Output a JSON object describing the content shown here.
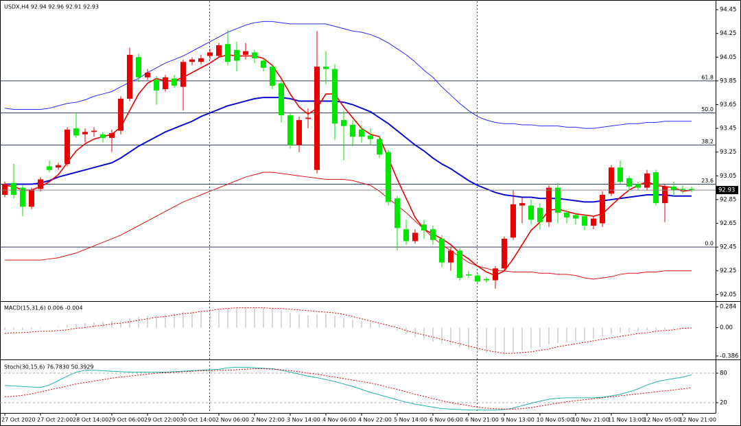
{
  "chart_data": [
    {
      "type": "candlestick",
      "title": "USDX,H4  92.94 92.96 92.91 92.93",
      "up_color": "#e60000",
      "down_color": "#00e600",
      "ylim": [
        92.0,
        94.52
      ],
      "yticks": [
        94.45,
        94.25,
        94.05,
        93.85,
        93.65,
        93.45,
        93.25,
        93.05,
        92.85,
        92.65,
        92.45,
        92.25,
        92.05
      ],
      "current_price": 92.93,
      "fib_levels": [
        {
          "value": 93.85,
          "label": "61.8"
        },
        {
          "value": 93.58,
          "label": "50.0"
        },
        {
          "value": 93.31,
          "label": "38.2"
        },
        {
          "value": 92.98,
          "label": "23.6"
        },
        {
          "value": 92.45,
          "label": "0.0"
        }
      ],
      "open": [
        92.89,
        92.99,
        92.95,
        92.79,
        92.94,
        93.13,
        93.12,
        93.15,
        93.45,
        93.4,
        93.42,
        93.4,
        93.37,
        93.43,
        93.7,
        94.05,
        93.88,
        93.86,
        93.78,
        93.87,
        93.8,
        94.01,
        94.01,
        94.06,
        94.06,
        94.16,
        94.11,
        94.07,
        94.09,
        94.02,
        93.97,
        93.83,
        93.56,
        93.31,
        93.53,
        93.1,
        93.97,
        93.95,
        93.52,
        93.48,
        93.44,
        93.39,
        93.36,
        93.25,
        92.86,
        92.6,
        92.5,
        92.64,
        92.6,
        92.52,
        92.32,
        92.42,
        92.22,
        92.21,
        92.18,
        92.17,
        92.27,
        92.53,
        92.8,
        92.8,
        92.78,
        92.66,
        92.95,
        92.74,
        92.72,
        92.71,
        92.63,
        92.65,
        92.9,
        93.12,
        93.03,
        92.98,
        92.95,
        93.08,
        92.82,
        92.96,
        92.94,
        92.94
      ],
      "high": [
        93.0,
        93.15,
        92.97,
        92.95,
        93.04,
        93.18,
        93.16,
        93.46,
        93.58,
        93.45,
        93.46,
        93.42,
        93.44,
        93.72,
        94.13,
        94.08,
        93.95,
        93.89,
        93.9,
        93.9,
        94.03,
        94.05,
        94.07,
        94.12,
        94.17,
        94.28,
        94.18,
        94.17,
        94.11,
        94.04,
        93.98,
        93.85,
        93.58,
        93.55,
        93.62,
        94.27,
        94.1,
        93.99,
        93.6,
        93.52,
        93.48,
        93.45,
        93.38,
        93.27,
        92.88,
        92.68,
        92.6,
        92.68,
        92.63,
        92.55,
        92.45,
        92.44,
        92.25,
        92.23,
        92.2,
        92.29,
        92.54,
        92.93,
        92.87,
        92.85,
        92.82,
        92.97,
        92.99,
        92.76,
        92.74,
        92.73,
        92.71,
        92.92,
        93.14,
        93.18,
        93.05,
        93.0,
        93.1,
        93.1,
        92.98,
        93.0,
        92.97,
        92.96
      ],
      "low": [
        92.87,
        92.86,
        92.71,
        92.77,
        92.92,
        93.08,
        93.1,
        93.13,
        93.37,
        93.33,
        93.38,
        93.33,
        93.25,
        93.4,
        93.68,
        93.84,
        93.86,
        93.65,
        93.76,
        93.79,
        93.6,
        93.98,
        93.99,
        94.03,
        94.05,
        93.98,
        93.93,
        94.03,
        94.0,
        93.93,
        93.78,
        93.5,
        93.28,
        93.25,
        93.45,
        93.07,
        93.82,
        93.35,
        93.18,
        93.3,
        93.33,
        93.31,
        93.2,
        92.8,
        92.42,
        92.47,
        92.48,
        92.52,
        92.47,
        92.28,
        92.25,
        92.17,
        92.19,
        92.14,
        92.15,
        92.1,
        92.25,
        92.51,
        92.65,
        92.64,
        92.6,
        92.62,
        92.65,
        92.65,
        92.64,
        92.59,
        92.6,
        92.62,
        92.88,
        92.98,
        92.93,
        92.93,
        92.93,
        92.8,
        92.66,
        92.88,
        92.9,
        92.91
      ],
      "close": [
        92.98,
        92.89,
        92.79,
        92.93,
        93.02,
        93.1,
        93.14,
        93.44,
        93.39,
        93.42,
        93.43,
        93.37,
        93.41,
        93.7,
        94.07,
        93.88,
        93.92,
        93.77,
        93.88,
        93.81,
        94.01,
        94.03,
        94.04,
        94.09,
        94.15,
        94.01,
        94.02,
        94.1,
        94.04,
        93.96,
        93.81,
        93.56,
        93.31,
        93.52,
        93.54,
        93.97,
        93.95,
        93.49,
        93.47,
        93.38,
        93.38,
        93.36,
        93.23,
        92.83,
        92.61,
        92.5,
        92.57,
        92.59,
        92.51,
        92.32,
        92.42,
        92.19,
        92.21,
        92.16,
        92.17,
        92.27,
        92.52,
        92.81,
        92.82,
        92.68,
        92.66,
        92.95,
        92.74,
        92.7,
        92.69,
        92.63,
        92.69,
        92.89,
        93.12,
        93.0,
        92.96,
        92.95,
        93.07,
        92.82,
        92.96,
        92.93,
        92.93,
        92.93
      ],
      "series": [
        {
          "style": "line",
          "color": "#2a2aff",
          "width": 1,
          "values": [
            93.62,
            93.61,
            93.61,
            93.61,
            93.61,
            93.62,
            93.64,
            93.66,
            93.67,
            93.69,
            93.72,
            93.74,
            93.76,
            93.8,
            93.84,
            93.87,
            93.92,
            93.96,
            94.0,
            94.03,
            94.06,
            94.1,
            94.14,
            94.18,
            94.22,
            94.26,
            94.29,
            94.32,
            94.34,
            94.35,
            94.35,
            94.34,
            94.33,
            94.33,
            94.33,
            94.33,
            94.33,
            94.31,
            94.29,
            94.27,
            94.26,
            94.24,
            94.21,
            94.17,
            94.12,
            94.07,
            94.01,
            93.94,
            93.88,
            93.8,
            93.73,
            93.66,
            93.6,
            93.55,
            93.52,
            93.5,
            93.49,
            93.49,
            93.48,
            93.48,
            93.47,
            93.47,
            93.47,
            93.46,
            93.46,
            93.45,
            93.45,
            93.46,
            93.47,
            93.48,
            93.49,
            93.49,
            93.5,
            93.5,
            93.51,
            93.51,
            93.51,
            93.51
          ]
        },
        {
          "style": "line",
          "color": "#dd1111",
          "width": 1,
          "values": [
            92.34,
            92.34,
            92.34,
            92.34,
            92.34,
            92.35,
            92.36,
            92.38,
            92.4,
            92.43,
            92.46,
            92.49,
            92.52,
            92.55,
            92.59,
            92.63,
            92.67,
            92.71,
            92.75,
            92.79,
            92.83,
            92.86,
            92.89,
            92.92,
            92.95,
            92.98,
            93.01,
            93.04,
            93.06,
            93.08,
            93.08,
            93.07,
            93.06,
            93.05,
            93.04,
            93.03,
            93.02,
            93.02,
            93.02,
            93.01,
            92.99,
            92.97,
            92.92,
            92.86,
            92.8,
            92.74,
            92.67,
            92.6,
            92.53,
            92.47,
            92.42,
            92.37,
            92.32,
            92.29,
            92.27,
            92.25,
            92.25,
            92.24,
            92.24,
            92.24,
            92.23,
            92.23,
            92.22,
            92.22,
            92.21,
            92.19,
            92.18,
            92.19,
            92.2,
            92.22,
            92.23,
            92.23,
            92.24,
            92.24,
            92.25,
            92.25,
            92.25,
            92.25
          ]
        },
        {
          "style": "line",
          "color": "#0a0ad0",
          "width": 2,
          "values": [
            92.98,
            92.98,
            92.98,
            92.98,
            92.99,
            93.01,
            93.04,
            93.06,
            93.08,
            93.1,
            93.12,
            93.14,
            93.16,
            93.2,
            93.25,
            93.3,
            93.34,
            93.38,
            93.42,
            93.45,
            93.48,
            93.51,
            93.55,
            93.58,
            93.61,
            93.64,
            93.66,
            93.68,
            93.7,
            93.71,
            93.71,
            93.71,
            93.7,
            93.68,
            93.68,
            93.68,
            93.68,
            93.68,
            93.67,
            93.65,
            93.62,
            93.59,
            93.54,
            93.49,
            93.43,
            93.37,
            93.31,
            93.26,
            93.2,
            93.15,
            93.11,
            93.06,
            93.01,
            92.97,
            92.94,
            92.91,
            92.89,
            92.88,
            92.87,
            92.87,
            92.86,
            92.86,
            92.86,
            92.85,
            92.84,
            92.83,
            92.83,
            92.84,
            92.85,
            92.86,
            92.87,
            92.88,
            92.89,
            92.89,
            92.89,
            92.88,
            92.88,
            92.88
          ]
        },
        {
          "style": "line",
          "color": "#e60000",
          "width": 1.6,
          "values": [
            92.97,
            92.96,
            92.93,
            92.93,
            92.96,
            93.0,
            93.06,
            93.16,
            93.26,
            93.32,
            93.36,
            93.38,
            93.4,
            93.46,
            93.6,
            93.74,
            93.83,
            93.87,
            93.85,
            93.85,
            93.88,
            93.92,
            93.96,
            94.0,
            94.05,
            94.07,
            94.06,
            94.06,
            94.06,
            94.04,
            93.98,
            93.87,
            93.74,
            93.63,
            93.57,
            93.62,
            93.74,
            93.74,
            93.63,
            93.54,
            93.45,
            93.4,
            93.38,
            93.2,
            93.02,
            92.86,
            92.7,
            92.6,
            92.56,
            92.52,
            92.47,
            92.4,
            92.35,
            92.29,
            92.24,
            92.21,
            92.25,
            92.35,
            92.47,
            92.59,
            92.66,
            92.76,
            92.77,
            92.75,
            92.73,
            92.72,
            92.71,
            92.73,
            92.8,
            92.87,
            92.93,
            92.97,
            93.0,
            92.97,
            92.96,
            92.95,
            92.92,
            92.93
          ]
        }
      ]
    },
    {
      "type": "bar",
      "title": "MACD(15,31,6) 0.006 -0.004",
      "ylim": [
        -0.424,
        0.341
      ],
      "yticks": [
        0.284,
        {
          "value": 0,
          "label": "0.00"
        },
        -0.386
      ],
      "series": [
        {
          "style": "bar",
          "color": "#b0b0b0",
          "width": 1,
          "values": [
            -0.03,
            -0.03,
            -0.03,
            -0.02,
            -0.01,
            0.0,
            0.01,
            0.03,
            0.05,
            0.06,
            0.07,
            0.08,
            0.09,
            0.1,
            0.13,
            0.15,
            0.16,
            0.17,
            0.18,
            0.19,
            0.21,
            0.22,
            0.23,
            0.25,
            0.26,
            0.27,
            0.27,
            0.28,
            0.28,
            0.27,
            0.26,
            0.23,
            0.2,
            0.18,
            0.17,
            0.18,
            0.19,
            0.16,
            0.13,
            0.11,
            0.09,
            0.07,
            0.05,
            0.01,
            -0.04,
            -0.09,
            -0.13,
            -0.16,
            -0.19,
            -0.22,
            -0.24,
            -0.27,
            -0.3,
            -0.33,
            -0.35,
            -0.37,
            -0.37,
            -0.34,
            -0.31,
            -0.29,
            -0.27,
            -0.23,
            -0.21,
            -0.2,
            -0.18,
            -0.17,
            -0.15,
            -0.12,
            -0.09,
            -0.07,
            -0.06,
            -0.05,
            -0.04,
            -0.04,
            -0.03,
            -0.02,
            -0.01,
            0.006
          ]
        },
        {
          "style": "dotted",
          "color": "#e60000",
          "width": 1,
          "values": [
            -0.08,
            -0.07,
            -0.07,
            -0.06,
            -0.05,
            -0.05,
            -0.04,
            -0.03,
            -0.01,
            0.0,
            0.02,
            0.03,
            0.05,
            0.06,
            0.08,
            0.1,
            0.12,
            0.14,
            0.15,
            0.17,
            0.19,
            0.2,
            0.22,
            0.23,
            0.25,
            0.26,
            0.27,
            0.27,
            0.27,
            0.27,
            0.26,
            0.26,
            0.25,
            0.24,
            0.23,
            0.22,
            0.21,
            0.2,
            0.18,
            0.15,
            0.12,
            0.09,
            0.06,
            0.03,
            0.0,
            -0.04,
            -0.07,
            -0.1,
            -0.13,
            -0.16,
            -0.19,
            -0.22,
            -0.25,
            -0.28,
            -0.31,
            -0.33,
            -0.35,
            -0.35,
            -0.34,
            -0.33,
            -0.31,
            -0.29,
            -0.26,
            -0.24,
            -0.22,
            -0.2,
            -0.18,
            -0.16,
            -0.14,
            -0.12,
            -0.1,
            -0.08,
            -0.07,
            -0.05,
            -0.04,
            -0.03,
            -0.01,
            -0.004
          ]
        }
      ]
    },
    {
      "type": "line",
      "title": "Stoch(30,15,6) 76.7830 50.3929",
      "ylim": [
        0.5,
        103.7
      ],
      "yticks": [
        80,
        20
      ],
      "grid": true,
      "categories": [
        "27 Oct 2020",
        null,
        null,
        null,
        "27 Oct 22:00",
        null,
        null,
        null,
        "28 Oct 14:00",
        null,
        null,
        null,
        "29 Oct 06:00",
        null,
        null,
        null,
        "29 Oct 22:00",
        null,
        null,
        null,
        "30 Oct 14:00",
        null,
        null,
        null,
        "2 Nov 06:00",
        null,
        null,
        null,
        "2 Nov 22:00",
        null,
        null,
        null,
        "3 Nov 14:00",
        null,
        null,
        null,
        "4 Nov 06:00",
        null,
        null,
        null,
        "4 Nov 22:00",
        null,
        null,
        null,
        "5 Nov 14:00",
        null,
        null,
        null,
        "6 Nov 06:00",
        null,
        null,
        null,
        "6 Nov 21:00",
        null,
        null,
        null,
        "9 Nov 13:00",
        null,
        null,
        null,
        "10 Nov 05:00",
        null,
        null,
        null,
        "10 Nov 21:00",
        null,
        null,
        null,
        "11 Nov 13:00",
        null,
        null,
        null,
        "12 Nov 05:00",
        null,
        null,
        null,
        "12 Nov 21:00",
        null
      ],
      "series": [
        {
          "style": "line",
          "color": "#20b2aa",
          "width": 1,
          "values": [
            55,
            54,
            53,
            52,
            51,
            56,
            65,
            74,
            82,
            86,
            86,
            85,
            84,
            83,
            82,
            82,
            82,
            82,
            82,
            83,
            84,
            85,
            86,
            87,
            88,
            91,
            92,
            92,
            91,
            90,
            89,
            86,
            82,
            78,
            74,
            71,
            67,
            63,
            58,
            53,
            47,
            41,
            36,
            31,
            26,
            21,
            17,
            14,
            11,
            8,
            7,
            6,
            5,
            5,
            5,
            5,
            6,
            9,
            14,
            19,
            23,
            27,
            29,
            30,
            30,
            30,
            30,
            31,
            34,
            37,
            42,
            48,
            56,
            62,
            66,
            69,
            72,
            76.783
          ]
        },
        {
          "style": "dotted",
          "color": "#e60000",
          "width": 1,
          "values": [
            32,
            33,
            35,
            38,
            42,
            46,
            50,
            54,
            58,
            61,
            64,
            67,
            70,
            72,
            74,
            76,
            78,
            80,
            81,
            82,
            83,
            84,
            85,
            85,
            86,
            86,
            87,
            88,
            89,
            89,
            88,
            87,
            85,
            83,
            80,
            78,
            75,
            72,
            69,
            66,
            63,
            60,
            56,
            51,
            47,
            42,
            37,
            33,
            28,
            24,
            20,
            17,
            14,
            11,
            9,
            8,
            7,
            7,
            8,
            10,
            13,
            16,
            19,
            22,
            24,
            26,
            28,
            30,
            32,
            34,
            36,
            38,
            40,
            42,
            44,
            46,
            48,
            50.3929
          ]
        }
      ]
    }
  ]
}
